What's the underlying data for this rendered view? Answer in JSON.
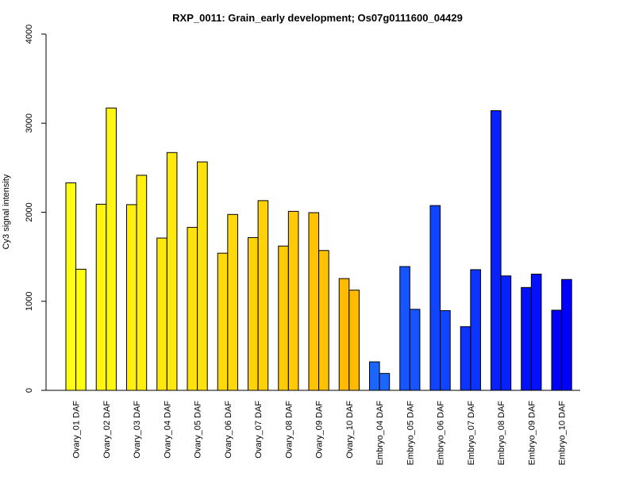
{
  "chart_data": {
    "type": "bar",
    "title": "RXP_0011: Grain_early development; Os07g0111600_04429",
    "xlabel": "",
    "ylabel": "Cy3 signal intensity",
    "ylim": [
      0,
      4000
    ],
    "yticks": [
      0,
      1000,
      2000,
      3000,
      4000
    ],
    "ytick_labels": [
      "0",
      "1000",
      "2000",
      "3000",
      "4000"
    ],
    "grid": false,
    "legend": "none",
    "categories": [
      "Ovary_01 DAF",
      "Ovary_02 DAF",
      "Ovary_03 DAF",
      "Ovary_04 DAF",
      "Ovary_05 DAF",
      "Ovary_06 DAF",
      "Ovary_07 DAF",
      "Ovary_08 DAF",
      "Ovary_09 DAF",
      "Ovary_10 DAF",
      "Embryo_04 DAF",
      "Embryo_05 DAF",
      "Embryo_06 DAF",
      "Embryo_07 DAF",
      "Embryo_08 DAF",
      "Embryo_09 DAF",
      "Embryo_10 DAF"
    ],
    "colors": [
      "#ffff14",
      "#fff712",
      "#fff010",
      "#ffe80e",
      "#ffe10c",
      "#ffd90a",
      "#ffd208",
      "#ffca06",
      "#ffc304",
      "#ffbb02",
      "#1a66ff",
      "#1555ff",
      "#1144ff",
      "#0d33ff",
      "#0822ff",
      "#0411ff",
      "#0000ff"
    ],
    "series": [
      {
        "values": [
          2330,
          2090,
          2085,
          1710,
          1830,
          1540,
          1715,
          1620,
          1995,
          1255,
          320,
          1390,
          2075,
          715,
          3140,
          1155,
          900
        ]
      },
      {
        "values": [
          1360,
          3170,
          2415,
          2670,
          2565,
          1975,
          2130,
          2010,
          1570,
          1125,
          190,
          910,
          895,
          1355,
          1285,
          1305,
          1245
        ]
      }
    ]
  }
}
